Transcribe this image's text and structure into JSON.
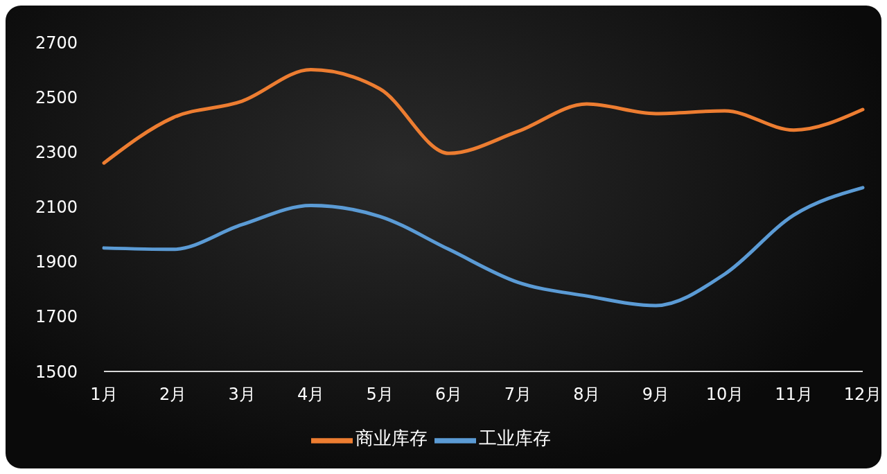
{
  "chart_data": {
    "type": "line",
    "categories": [
      "1月",
      "2月",
      "3月",
      "4月",
      "5月",
      "6月",
      "7月",
      "8月",
      "9月",
      "10月",
      "11月",
      "12月"
    ],
    "series": [
      {
        "name": "工业库存",
        "color": "#5b9bd5",
        "values": [
          1950,
          1945,
          2035,
          2105,
          2065,
          1945,
          1825,
          1775,
          1740,
          1855,
          2070,
          2170
        ]
      },
      {
        "name": "商业库存",
        "color": "#ed7d31",
        "values": [
          2260,
          2425,
          2485,
          2600,
          2530,
          2295,
          2375,
          2475,
          2440,
          2450,
          2380,
          2455
        ]
      }
    ],
    "ylim": [
      1500,
      2700
    ],
    "yticks": [
      1500,
      1700,
      1900,
      2100,
      2300,
      2500,
      2700
    ],
    "grid": false,
    "legend": "bottom",
    "marker": "none",
    "line_style": "solid"
  }
}
